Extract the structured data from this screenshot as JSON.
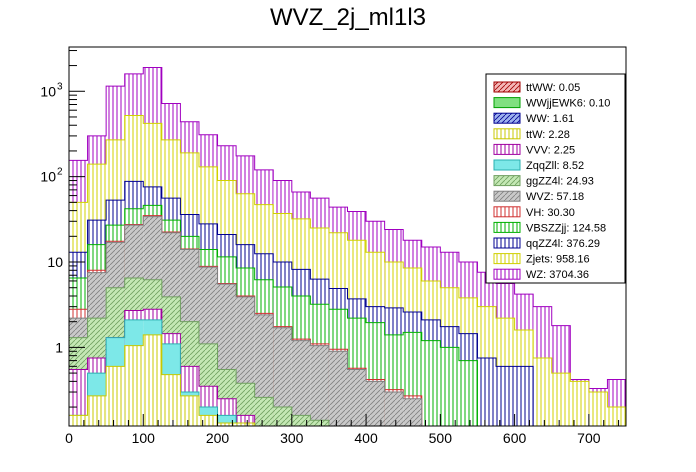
{
  "chart_data": {
    "type": "bar",
    "stacked": true,
    "title": "WVZ_2j_ml1l3",
    "xlabel": "",
    "ylabel": "",
    "xlim": [
      0,
      750
    ],
    "ylim": [
      0.12,
      3300
    ],
    "ylog": true,
    "bin_edges": [
      0,
      25,
      50,
      75,
      100,
      125,
      150,
      175,
      200,
      225,
      250,
      275,
      300,
      325,
      350,
      375,
      400,
      425,
      450,
      475,
      500,
      525,
      550,
      575,
      600,
      625,
      650,
      675,
      700,
      725,
      750
    ],
    "x_ticks": [
      {
        "value": 0,
        "label": "0"
      },
      {
        "value": 100,
        "label": "100"
      },
      {
        "value": 200,
        "label": "200"
      },
      {
        "value": 300,
        "label": "300"
      },
      {
        "value": 400,
        "label": "400"
      },
      {
        "value": 500,
        "label": "500"
      },
      {
        "value": 600,
        "label": "600"
      },
      {
        "value": 700,
        "label": "700"
      }
    ],
    "y_ticks": [
      {
        "value": 1,
        "label": "1"
      },
      {
        "value": 10,
        "label": "10"
      },
      {
        "value": 100,
        "label": "10",
        "exp": "2"
      },
      {
        "value": 1000,
        "label": "10",
        "exp": "3"
      }
    ],
    "legend_position": "top-right",
    "legend": [
      {
        "label": "ttWW: 0.05",
        "series": "ttWW"
      },
      {
        "label": "WWjjEWK6: 0.10",
        "series": "WWjjEWK6"
      },
      {
        "label": "WW: 1.61",
        "series": "WW"
      },
      {
        "label": "ttW: 2.28",
        "series": "ttW"
      },
      {
        "label": "VVV: 2.25",
        "series": "VVV"
      },
      {
        "label": "ZqqZll: 8.52",
        "series": "ZqqZll"
      },
      {
        "label": "ggZZ4l: 24.93",
        "series": "ggZZ4l"
      },
      {
        "label": "WVZ: 57.18",
        "series": "WVZ"
      },
      {
        "label": "VH: 30.30",
        "series": "VH"
      },
      {
        "label": "VBSZZjj: 124.58",
        "series": "VBSZZjj"
      },
      {
        "label": "qqZZ4l: 376.29",
        "series": "qqZZ4l"
      },
      {
        "label": "Zjets: 958.16",
        "series": "Zjets"
      },
      {
        "label": "WZ: 3704.36",
        "series": "WZ"
      }
    ],
    "stack_totals": [
      {
        "name": "ttW",
        "fill": "#f5f56a",
        "stroke": "#c8c800",
        "pattern": "vlines",
        "values": [
          0.16,
          0.27,
          0.6,
          1.05,
          1.4,
          0.48,
          0.27,
          0.16,
          0.13,
          0.13,
          0,
          0,
          0,
          0,
          0,
          0,
          0,
          0,
          0,
          0,
          0,
          0,
          0,
          0,
          0,
          0,
          0,
          0,
          0,
          0
        ]
      },
      {
        "name": "ZqqZll",
        "fill": "#7de8e8",
        "stroke": "#2ab0b0",
        "pattern": "solid",
        "values": [
          0.16,
          0.5,
          1.3,
          2.1,
          2.1,
          1.1,
          0.3,
          0.2,
          0.16,
          0.13,
          0,
          0,
          0,
          0,
          0,
          0,
          0,
          0,
          0,
          0,
          0,
          0,
          0,
          0,
          0,
          0,
          0,
          0,
          0,
          0
        ]
      },
      {
        "name": "VVV",
        "fill": "#e38ce3",
        "stroke": "#a000a0",
        "pattern": "vlines",
        "values": [
          0.55,
          0.75,
          1.3,
          2.7,
          2.8,
          1.45,
          0.6,
          0.35,
          0.25,
          0.16,
          0,
          0,
          0,
          0,
          0,
          0,
          0,
          0,
          0,
          0,
          0,
          0,
          0,
          0,
          0,
          0,
          0,
          0,
          0,
          0
        ]
      },
      {
        "name": "ggZZ4l",
        "fill": "#c4e8b4",
        "stroke": "#70a060",
        "pattern": "diag",
        "values": [
          1.3,
          2.2,
          5.0,
          6.5,
          6.2,
          3.9,
          2.0,
          1.1,
          0.55,
          0.38,
          0.26,
          0.2,
          0.16,
          0.14,
          0,
          0,
          0,
          0,
          0,
          0,
          0,
          0,
          0,
          0,
          0,
          0,
          0,
          0,
          0,
          0
        ]
      },
      {
        "name": "WVZ",
        "fill": "#c9c9c9",
        "stroke": "#808080",
        "pattern": "diag",
        "values": [
          2.2,
          7.5,
          17,
          27,
          34,
          22,
          14,
          8.7,
          5.5,
          3.9,
          2.4,
          1.7,
          1.2,
          1.05,
          0.9,
          0.55,
          0.4,
          0.3,
          0.25,
          0,
          0,
          0,
          0,
          0,
          0,
          0,
          0,
          0,
          0,
          0
        ]
      },
      {
        "name": "VH",
        "fill": "#f4b6b6",
        "stroke": "#d03030",
        "pattern": "vlines",
        "values": [
          2.8,
          8.0,
          17.5,
          27.5,
          35,
          22.5,
          14.2,
          8.9,
          5.6,
          4.0,
          2.5,
          1.75,
          1.25,
          1.1,
          0.95,
          0.57,
          0.42,
          0.32,
          0.27,
          0,
          0,
          0,
          0,
          0,
          0,
          0,
          0,
          0,
          0,
          0
        ]
      },
      {
        "name": "VBSZZjj",
        "fill": "#9ef29e",
        "stroke": "#00b000",
        "pattern": "vlines",
        "values": [
          6.5,
          16,
          27,
          42,
          46,
          31,
          20,
          14,
          11.5,
          8.5,
          6.2,
          5.1,
          4.0,
          3.2,
          2.8,
          2.2,
          1.95,
          1.4,
          1.5,
          1.2,
          1.0,
          0.7,
          0,
          0,
          0,
          0,
          0,
          0,
          0,
          0
        ]
      },
      {
        "name": "qqZZ4l",
        "fill": "#9db1ee",
        "stroke": "#000090",
        "pattern": "vlines",
        "values": [
          13,
          31,
          53,
          88,
          76,
          56,
          36,
          28,
          21,
          16,
          12.5,
          10,
          8.2,
          6.3,
          4.9,
          3.7,
          3.0,
          2.9,
          2.6,
          2.1,
          1.75,
          1.45,
          0.75,
          0.6,
          0.6,
          0,
          0,
          0,
          0,
          0
        ]
      },
      {
        "name": "Zjets",
        "fill": "#f5f57a",
        "stroke": "#d0d000",
        "pattern": "vlines",
        "values": [
          50,
          140,
          270,
          520,
          420,
          270,
          190,
          130,
          90,
          63,
          47,
          37,
          32,
          25,
          22,
          18,
          13,
          10,
          8.5,
          6,
          5,
          3.8,
          3.0,
          2.2,
          1.6,
          0.75,
          0.5,
          0.4,
          0.3,
          0.2
        ]
      },
      {
        "name": "WZ",
        "fill": "#ea95ea",
        "stroke": "#a000c0",
        "pattern": "vlines",
        "values": [
          155,
          300,
          1150,
          1600,
          1900,
          720,
          440,
          310,
          230,
          175,
          120,
          90,
          66,
          56,
          44,
          39,
          30,
          24,
          18,
          15,
          13,
          10,
          7.6,
          5.6,
          4.2,
          3.0,
          1.8,
          0.42,
          0.33,
          0.42
        ]
      }
    ]
  }
}
